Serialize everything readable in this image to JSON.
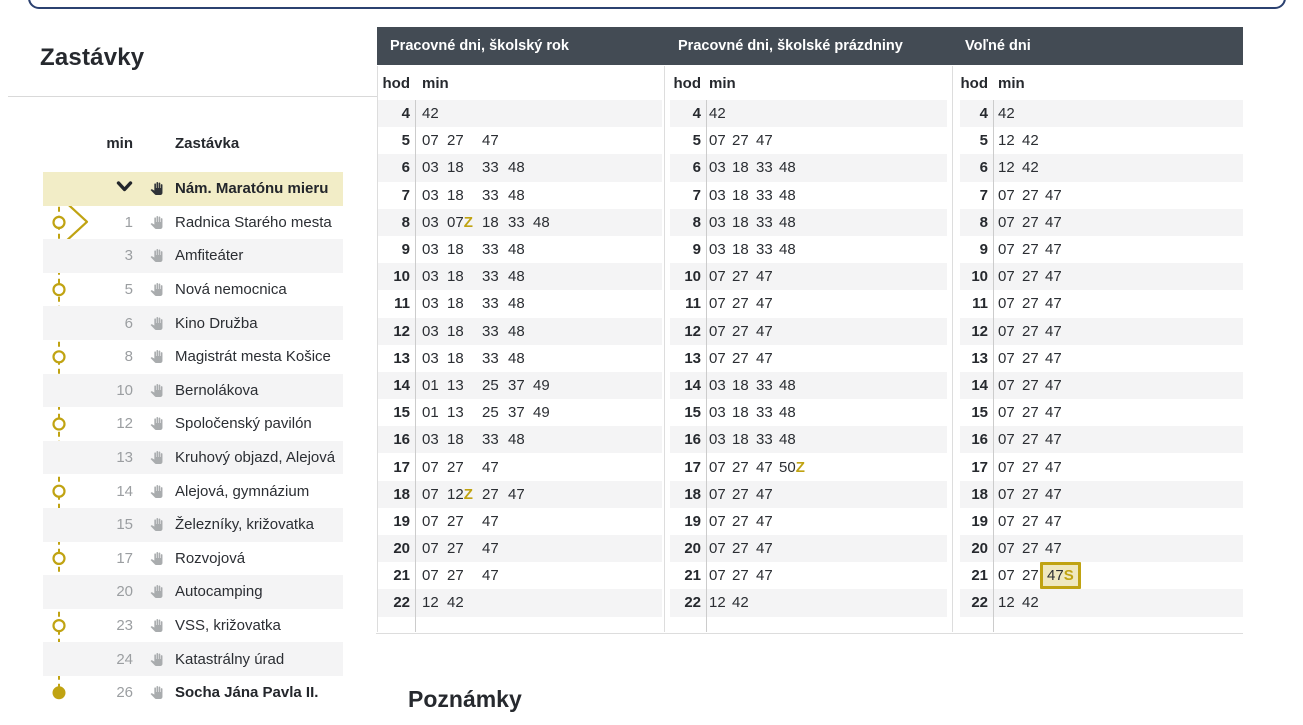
{
  "sidebar": {
    "title": "Zastávky",
    "col_min": "min",
    "col_stop": "Zastávka",
    "stops": [
      {
        "min": "",
        "name": "Nám. Maratónu mieru",
        "selected": true,
        "bold": true
      },
      {
        "min": "1",
        "name": "Radnica Starého mesta"
      },
      {
        "min": "3",
        "name": "Amfiteáter"
      },
      {
        "min": "5",
        "name": "Nová nemocnica"
      },
      {
        "min": "6",
        "name": "Kino Družba"
      },
      {
        "min": "8",
        "name": "Magistrát mesta Košice"
      },
      {
        "min": "10",
        "name": "Bernolákova"
      },
      {
        "min": "12",
        "name": "Spoločenský pavilón"
      },
      {
        "min": "13",
        "name": "Kruhový objazd, Alejová"
      },
      {
        "min": "14",
        "name": "Alejová, gymnázium"
      },
      {
        "min": "15",
        "name": "Železníky, križovatka"
      },
      {
        "min": "17",
        "name": "Rozvojová"
      },
      {
        "min": "20",
        "name": "Autocamping"
      },
      {
        "min": "23",
        "name": "VSS, križovatka"
      },
      {
        "min": "24",
        "name": "Katastrálny úrad"
      },
      {
        "min": "26",
        "name": "Socha Jána Pavla II.",
        "bold": true
      }
    ]
  },
  "timetable": {
    "hod_label": "hod",
    "min_label": "min",
    "panels": [
      {
        "title": "Pracovné dni, školský rok",
        "rows": [
          {
            "h": "4",
            "m": [
              "42"
            ]
          },
          {
            "h": "5",
            "m": [
              "07",
              "27",
              "47"
            ]
          },
          {
            "h": "6",
            "m": [
              "03",
              "18",
              "33",
              "48"
            ]
          },
          {
            "h": "7",
            "m": [
              "03",
              "18",
              "33",
              "48"
            ]
          },
          {
            "h": "8",
            "m": [
              "03",
              "07Z",
              "18",
              "33",
              "48"
            ]
          },
          {
            "h": "9",
            "m": [
              "03",
              "18",
              "33",
              "48"
            ]
          },
          {
            "h": "10",
            "m": [
              "03",
              "18",
              "33",
              "48"
            ]
          },
          {
            "h": "11",
            "m": [
              "03",
              "18",
              "33",
              "48"
            ]
          },
          {
            "h": "12",
            "m": [
              "03",
              "18",
              "33",
              "48"
            ]
          },
          {
            "h": "13",
            "m": [
              "03",
              "18",
              "33",
              "48"
            ]
          },
          {
            "h": "14",
            "m": [
              "01",
              "13",
              "25",
              "37",
              "49"
            ]
          },
          {
            "h": "15",
            "m": [
              "01",
              "13",
              "25",
              "37",
              "49"
            ]
          },
          {
            "h": "16",
            "m": [
              "03",
              "18",
              "33",
              "48"
            ]
          },
          {
            "h": "17",
            "m": [
              "07",
              "27",
              "47"
            ]
          },
          {
            "h": "18",
            "m": [
              "07",
              "12Z",
              "27",
              "47"
            ]
          },
          {
            "h": "19",
            "m": [
              "07",
              "27",
              "47"
            ]
          },
          {
            "h": "20",
            "m": [
              "07",
              "27",
              "47"
            ]
          },
          {
            "h": "21",
            "m": [
              "07",
              "27",
              "47"
            ]
          },
          {
            "h": "22",
            "m": [
              "12",
              "42"
            ]
          }
        ]
      },
      {
        "title": "Pracovné dni, školské prázdniny",
        "rows": [
          {
            "h": "4",
            "m": [
              "42"
            ]
          },
          {
            "h": "5",
            "m": [
              "07",
              "27",
              "47"
            ]
          },
          {
            "h": "6",
            "m": [
              "03",
              "18",
              "33",
              "48"
            ]
          },
          {
            "h": "7",
            "m": [
              "03",
              "18",
              "33",
              "48"
            ]
          },
          {
            "h": "8",
            "m": [
              "03",
              "18",
              "33",
              "48"
            ]
          },
          {
            "h": "9",
            "m": [
              "03",
              "18",
              "33",
              "48"
            ]
          },
          {
            "h": "10",
            "m": [
              "07",
              "27",
              "47"
            ]
          },
          {
            "h": "11",
            "m": [
              "07",
              "27",
              "47"
            ]
          },
          {
            "h": "12",
            "m": [
              "07",
              "27",
              "47"
            ]
          },
          {
            "h": "13",
            "m": [
              "07",
              "27",
              "47"
            ]
          },
          {
            "h": "14",
            "m": [
              "03",
              "18",
              "33",
              "48"
            ]
          },
          {
            "h": "15",
            "m": [
              "03",
              "18",
              "33",
              "48"
            ]
          },
          {
            "h": "16",
            "m": [
              "03",
              "18",
              "33",
              "48"
            ]
          },
          {
            "h": "17",
            "m": [
              "07",
              "27",
              "47",
              "50Z"
            ]
          },
          {
            "h": "18",
            "m": [
              "07",
              "27",
              "47"
            ]
          },
          {
            "h": "19",
            "m": [
              "07",
              "27",
              "47"
            ]
          },
          {
            "h": "20",
            "m": [
              "07",
              "27",
              "47"
            ]
          },
          {
            "h": "21",
            "m": [
              "07",
              "27",
              "47"
            ]
          },
          {
            "h": "22",
            "m": [
              "12",
              "42"
            ]
          }
        ]
      },
      {
        "title": "Voľné dni",
        "rows": [
          {
            "h": "4",
            "m": [
              "42"
            ]
          },
          {
            "h": "5",
            "m": [
              "12",
              "42"
            ]
          },
          {
            "h": "6",
            "m": [
              "12",
              "42"
            ]
          },
          {
            "h": "7",
            "m": [
              "07",
              "27",
              "47"
            ]
          },
          {
            "h": "8",
            "m": [
              "07",
              "27",
              "47"
            ]
          },
          {
            "h": "9",
            "m": [
              "07",
              "27",
              "47"
            ]
          },
          {
            "h": "10",
            "m": [
              "07",
              "27",
              "47"
            ]
          },
          {
            "h": "11",
            "m": [
              "07",
              "27",
              "47"
            ]
          },
          {
            "h": "12",
            "m": [
              "07",
              "27",
              "47"
            ]
          },
          {
            "h": "13",
            "m": [
              "07",
              "27",
              "47"
            ]
          },
          {
            "h": "14",
            "m": [
              "07",
              "27",
              "47"
            ]
          },
          {
            "h": "15",
            "m": [
              "07",
              "27",
              "47"
            ]
          },
          {
            "h": "16",
            "m": [
              "07",
              "27",
              "47"
            ]
          },
          {
            "h": "17",
            "m": [
              "07",
              "27",
              "47"
            ]
          },
          {
            "h": "18",
            "m": [
              "07",
              "27",
              "47"
            ]
          },
          {
            "h": "19",
            "m": [
              "07",
              "27",
              "47"
            ]
          },
          {
            "h": "20",
            "m": [
              "07",
              "27",
              "47"
            ]
          },
          {
            "h": "21",
            "m": [
              "07",
              "27",
              "47S"
            ],
            "boxed": 2
          },
          {
            "h": "22",
            "m": [
              "12",
              "42"
            ]
          }
        ]
      }
    ]
  },
  "notes": {
    "title": "Poznámky"
  },
  "colors": {
    "accent_gold": "#c0a312",
    "selected_row_bg": "#f2edc7",
    "header_bar_bg": "#434b54",
    "stripe_bg": "#f4f4f5",
    "focus_outline": "#2b4170"
  }
}
